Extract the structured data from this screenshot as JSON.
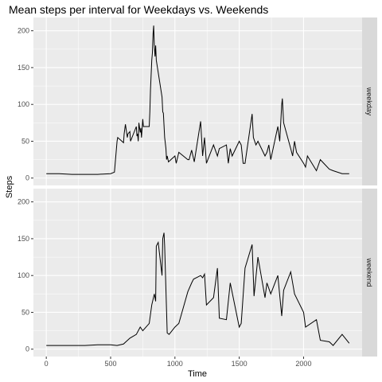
{
  "chart_data": {
    "type": "line",
    "title": "Mean steps per interval for Weekdays vs. Weekends",
    "xlabel": "Time",
    "ylabel": "Steps",
    "xlim": [
      -100,
      2455
    ],
    "ylim": [
      -10,
      218
    ],
    "xticks": [
      0,
      500,
      1000,
      1500,
      2000
    ],
    "yticks": [
      0,
      50,
      100,
      150,
      200
    ],
    "grid": true,
    "colors": {
      "panel_bg": "#ebebeb",
      "grid": "#ffffff",
      "strip_bg": "#d9d9d9",
      "line": "#000000"
    },
    "panels": [
      {
        "name": "weekday",
        "x": [
          0,
          100,
          200,
          300,
          400,
          500,
          530,
          550,
          555,
          600,
          605,
          615,
          630,
          635,
          650,
          655,
          700,
          705,
          710,
          715,
          720,
          730,
          735,
          740,
          750,
          755,
          800,
          805,
          810,
          820,
          825,
          830,
          835,
          840,
          845,
          850,
          855,
          900,
          905,
          910,
          920,
          930,
          935,
          940,
          950,
          1000,
          1010,
          1030,
          1100,
          1110,
          1130,
          1150,
          1200,
          1215,
          1230,
          1245,
          1300,
          1330,
          1345,
          1400,
          1415,
          1430,
          1445,
          1500,
          1515,
          1530,
          1545,
          1600,
          1610,
          1630,
          1645,
          1700,
          1715,
          1730,
          1745,
          1800,
          1815,
          1830,
          1835,
          1845,
          1900,
          1915,
          1930,
          1945,
          2000,
          2015,
          2030,
          2100,
          2130,
          2200,
          2230,
          2300,
          2355
        ],
        "y": [
          6,
          6,
          5,
          5,
          5,
          6,
          8,
          50,
          55,
          48,
          60,
          73,
          55,
          60,
          63,
          50,
          70,
          57,
          60,
          50,
          75,
          62,
          68,
          55,
          80,
          70,
          70,
          90,
          120,
          160,
          170,
          195,
          207,
          180,
          165,
          180,
          160,
          110,
          90,
          88,
          55,
          40,
          25,
          30,
          22,
          30,
          20,
          35,
          25,
          25,
          38,
          22,
          77,
          30,
          55,
          20,
          45,
          30,
          40,
          45,
          20,
          40,
          30,
          50,
          45,
          20,
          20,
          87,
          55,
          45,
          50,
          30,
          35,
          45,
          25,
          70,
          50,
          100,
          108,
          75,
          40,
          30,
          50,
          35,
          20,
          15,
          30,
          10,
          25,
          12,
          10,
          6,
          6
        ]
      },
      {
        "name": "weekend",
        "x": [
          0,
          100,
          200,
          300,
          400,
          500,
          550,
          600,
          650,
          700,
          730,
          750,
          800,
          820,
          840,
          850,
          855,
          870,
          880,
          900,
          905,
          915,
          920,
          940,
          955,
          1000,
          1030,
          1100,
          1130,
          1145,
          1200,
          1215,
          1230,
          1245,
          1300,
          1330,
          1345,
          1400,
          1430,
          1500,
          1515,
          1545,
          1600,
          1615,
          1645,
          1700,
          1715,
          1745,
          1800,
          1830,
          1845,
          1900,
          1930,
          2000,
          2015,
          2100,
          2130,
          2200,
          2230,
          2300,
          2355
        ],
        "y": [
          5,
          5,
          5,
          5,
          6,
          6,
          5,
          7,
          15,
          20,
          30,
          25,
          35,
          60,
          75,
          65,
          140,
          145,
          130,
          100,
          150,
          158,
          140,
          22,
          20,
          30,
          35,
          78,
          90,
          95,
          100,
          97,
          102,
          60,
          70,
          110,
          42,
          40,
          90,
          30,
          35,
          110,
          142,
          72,
          125,
          70,
          90,
          75,
          100,
          45,
          80,
          105,
          75,
          50,
          30,
          40,
          12,
          10,
          5,
          20,
          8
        ]
      }
    ]
  }
}
